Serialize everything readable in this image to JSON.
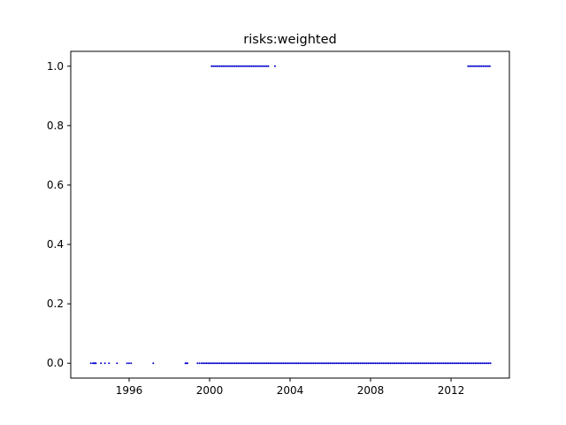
{
  "chart_data": {
    "type": "scatter",
    "title": "risks:weighted",
    "xlabel": "",
    "ylabel": "",
    "xlim": [
      1993.1,
      2014.9
    ],
    "ylim": [
      -0.05,
      1.05
    ],
    "x_ticks": [
      1996,
      2000,
      2004,
      2008,
      2012
    ],
    "x_tick_labels": [
      "1996",
      "2000",
      "2004",
      "2008",
      "2012"
    ],
    "y_ticks": [
      0.0,
      0.2,
      0.4,
      0.6,
      0.8,
      1.0
    ],
    "y_tick_labels": [
      "0.0",
      "0.2",
      "0.4",
      "0.6",
      "0.8",
      "1.0"
    ],
    "grid": false,
    "marker_color": "#0000cc",
    "series": [
      {
        "segments": [
          {
            "y": 0,
            "x": [
              1994.1,
              1994.2,
              1994.25,
              1994.3,
              1994.35,
              1994.6,
              1994.8,
              1995.0,
              1995.4,
              1995.9,
              1996.0,
              1996.1,
              1997.2,
              1998.8,
              1998.85,
              1998.9,
              1999.4,
              1999.5
            ]
          },
          {
            "y": 0,
            "range": [
              1999.6,
              2014.0
            ],
            "step": 0.083
          },
          {
            "y": 1,
            "range": [
              2000.1,
              2003.0
            ],
            "step": 0.083
          },
          {
            "y": 1,
            "x": [
              2003.25
            ]
          },
          {
            "y": 1,
            "range": [
              2012.85,
              2014.0
            ],
            "step": 0.083
          }
        ]
      }
    ]
  }
}
